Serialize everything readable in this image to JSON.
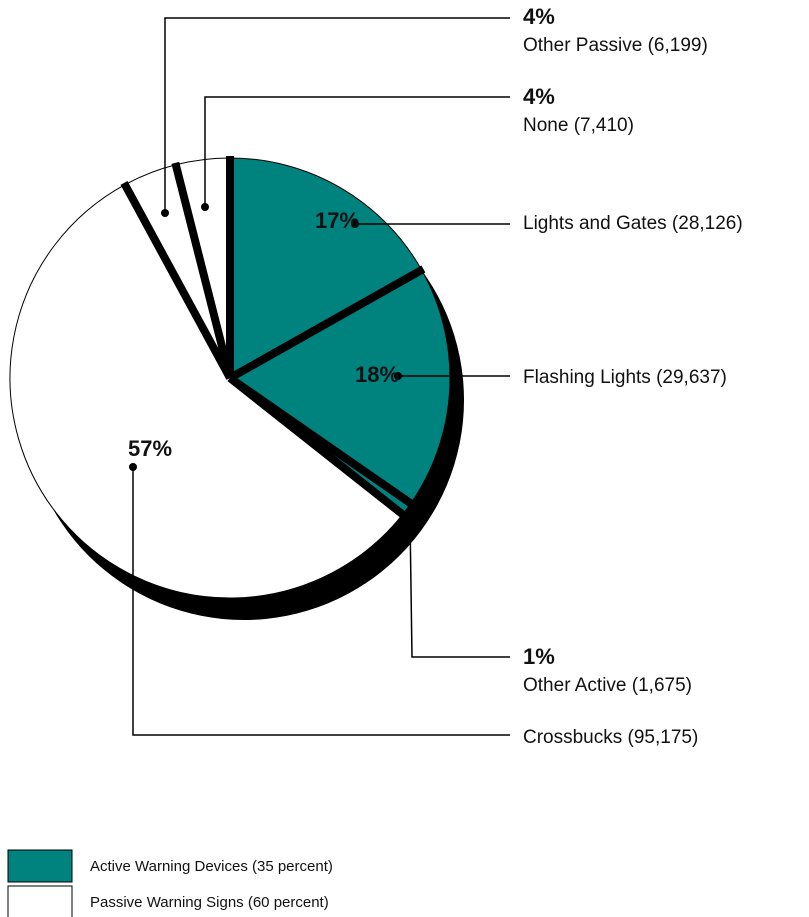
{
  "chart_data": {
    "type": "pie",
    "categories": [
      "Lights and Gates (28,126)",
      "Flashing Lights (29,637)",
      "Other Active (1,675)",
      "Crossbucks (95,175)",
      "Other Passive (6,199)",
      "None (7,410)"
    ],
    "values": [
      17,
      18,
      1,
      57,
      4,
      4
    ],
    "value_labels": [
      "17%",
      "18%",
      "1%",
      "57%",
      "4%",
      "4%"
    ],
    "colors": [
      "#00827f",
      "#00827f",
      "#00827f",
      "#ffffff",
      "#ffffff",
      "#ffffff"
    ],
    "legend": [
      {
        "label": "Active Warning Devices (35 percent)",
        "color": "#00827f"
      },
      {
        "label": "Passive Warning Signs (60 percent)",
        "color": "#ffffff"
      }
    ]
  }
}
